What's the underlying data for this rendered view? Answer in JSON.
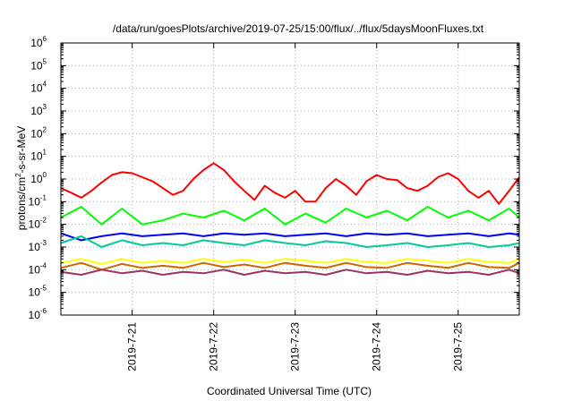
{
  "chart_data": {
    "type": "line",
    "title": "/data/run/goesPlots/archive/2019-07-25/15:00/flux/../flux/5daysMoonFluxes.txt",
    "xlabel": "Coordinated Universal Time (UTC)",
    "ylabel": "protons/cm²-s-sr-MeV",
    "ylabel_parts": {
      "pre": "protons/cm",
      "sup": "2",
      "post": "-s-sr-MeV"
    },
    "yscale": "log",
    "ylim_exp": [
      -6,
      6
    ],
    "ytick_exponents": [
      -6,
      -5,
      -4,
      -3,
      -2,
      -1,
      0,
      1,
      2,
      3,
      4,
      5,
      6
    ],
    "ytick_base": "10",
    "xlim": [
      "2019-07-20T03:00",
      "2019-07-25T18:00"
    ],
    "xticks": [
      {
        "date": "2019-07-21",
        "label": "2019-7-21"
      },
      {
        "date": "2019-07-22",
        "label": "2019-7-22"
      },
      {
        "date": "2019-07-23",
        "label": "2019-7-23"
      },
      {
        "date": "2019-07-24",
        "label": "2019-7-24"
      },
      {
        "date": "2019-07-25",
        "label": "2019-7-25"
      }
    ],
    "grid": true,
    "series": [
      {
        "color": "#ff0000",
        "x": [
          "2019-07-20T03:00",
          "2019-07-20T06:00",
          "2019-07-20T09:00",
          "2019-07-20T12:00",
          "2019-07-20T15:00",
          "2019-07-20T18:00",
          "2019-07-20T21:00",
          "2019-07-21T00:00",
          "2019-07-21T03:00",
          "2019-07-21T06:00",
          "2019-07-21T09:00",
          "2019-07-21T12:00",
          "2019-07-21T15:00",
          "2019-07-21T18:00",
          "2019-07-21T21:00",
          "2019-07-22T00:00",
          "2019-07-22T03:00",
          "2019-07-22T06:00",
          "2019-07-22T09:00",
          "2019-07-22T12:00",
          "2019-07-22T15:00",
          "2019-07-22T18:00",
          "2019-07-22T21:00",
          "2019-07-23T00:00",
          "2019-07-23T03:00",
          "2019-07-23T06:00",
          "2019-07-23T09:00",
          "2019-07-23T12:00",
          "2019-07-23T15:00",
          "2019-07-23T18:00",
          "2019-07-23T21:00",
          "2019-07-24T00:00",
          "2019-07-24T03:00",
          "2019-07-24T06:00",
          "2019-07-24T09:00",
          "2019-07-24T12:00",
          "2019-07-24T15:00",
          "2019-07-24T18:00",
          "2019-07-24T21:00",
          "2019-07-25T00:00",
          "2019-07-25T03:00",
          "2019-07-25T06:00",
          "2019-07-25T09:00",
          "2019-07-25T12:00",
          "2019-07-25T15:00",
          "2019-07-25T18:00"
        ],
        "y": [
          0.4,
          0.25,
          0.15,
          0.3,
          0.7,
          1.5,
          2.0,
          1.8,
          1.2,
          0.8,
          0.4,
          0.2,
          0.3,
          1.0,
          2.5,
          5.0,
          2.5,
          0.8,
          0.3,
          0.12,
          0.5,
          0.25,
          0.15,
          0.3,
          0.1,
          0.1,
          0.4,
          1.0,
          0.5,
          0.2,
          0.8,
          1.5,
          1.0,
          0.9,
          0.4,
          0.3,
          0.5,
          1.2,
          1.8,
          1.0,
          0.3,
          0.15,
          0.3,
          0.08,
          0.3,
          1.2
        ]
      },
      {
        "color": "#00ff00",
        "x": [
          "2019-07-20T03:00",
          "2019-07-20T09:00",
          "2019-07-20T15:00",
          "2019-07-20T21:00",
          "2019-07-21T03:00",
          "2019-07-21T09:00",
          "2019-07-21T15:00",
          "2019-07-21T21:00",
          "2019-07-22T03:00",
          "2019-07-22T09:00",
          "2019-07-22T15:00",
          "2019-07-22T21:00",
          "2019-07-23T03:00",
          "2019-07-23T09:00",
          "2019-07-23T15:00",
          "2019-07-23T21:00",
          "2019-07-24T03:00",
          "2019-07-24T09:00",
          "2019-07-24T15:00",
          "2019-07-24T21:00",
          "2019-07-25T03:00",
          "2019-07-25T09:00",
          "2019-07-25T15:00",
          "2019-07-25T18:00"
        ],
        "y": [
          0.02,
          0.06,
          0.01,
          0.05,
          0.01,
          0.015,
          0.03,
          0.02,
          0.04,
          0.015,
          0.05,
          0.01,
          0.03,
          0.012,
          0.05,
          0.02,
          0.04,
          0.015,
          0.06,
          0.02,
          0.04,
          0.015,
          0.05,
          0.02
        ]
      },
      {
        "color": "#0000ff",
        "x": [
          "2019-07-20T03:00",
          "2019-07-20T09:00",
          "2019-07-20T15:00",
          "2019-07-20T21:00",
          "2019-07-21T03:00",
          "2019-07-21T09:00",
          "2019-07-21T15:00",
          "2019-07-21T21:00",
          "2019-07-22T03:00",
          "2019-07-22T09:00",
          "2019-07-22T15:00",
          "2019-07-22T21:00",
          "2019-07-23T03:00",
          "2019-07-23T09:00",
          "2019-07-23T15:00",
          "2019-07-23T21:00",
          "2019-07-24T03:00",
          "2019-07-24T09:00",
          "2019-07-24T15:00",
          "2019-07-24T21:00",
          "2019-07-25T03:00",
          "2019-07-25T09:00",
          "2019-07-25T15:00",
          "2019-07-25T18:00"
        ],
        "y": [
          0.004,
          0.002,
          0.003,
          0.004,
          0.003,
          0.0035,
          0.004,
          0.003,
          0.004,
          0.0035,
          0.004,
          0.003,
          0.0035,
          0.004,
          0.003,
          0.004,
          0.0035,
          0.004,
          0.003,
          0.0035,
          0.004,
          0.003,
          0.004,
          0.0035
        ]
      },
      {
        "color": "#00cc99",
        "x": [
          "2019-07-20T03:00",
          "2019-07-20T09:00",
          "2019-07-20T15:00",
          "2019-07-20T21:00",
          "2019-07-21T03:00",
          "2019-07-21T09:00",
          "2019-07-21T15:00",
          "2019-07-21T21:00",
          "2019-07-22T03:00",
          "2019-07-22T09:00",
          "2019-07-22T15:00",
          "2019-07-22T21:00",
          "2019-07-23T03:00",
          "2019-07-23T09:00",
          "2019-07-23T15:00",
          "2019-07-23T21:00",
          "2019-07-24T03:00",
          "2019-07-24T09:00",
          "2019-07-24T15:00",
          "2019-07-24T21:00",
          "2019-07-25T03:00",
          "2019-07-25T09:00",
          "2019-07-25T15:00",
          "2019-07-25T18:00"
        ],
        "y": [
          0.0015,
          0.003,
          0.001,
          0.002,
          0.0012,
          0.0015,
          0.0012,
          0.002,
          0.0015,
          0.0012,
          0.002,
          0.0015,
          0.0012,
          0.0018,
          0.0015,
          0.001,
          0.0012,
          0.0015,
          0.001,
          0.0012,
          0.0015,
          0.001,
          0.0012,
          0.0015
        ]
      },
      {
        "color": "#ffff00",
        "x": [
          "2019-07-20T03:00",
          "2019-07-20T09:00",
          "2019-07-20T15:00",
          "2019-07-20T21:00",
          "2019-07-21T03:00",
          "2019-07-21T09:00",
          "2019-07-21T15:00",
          "2019-07-21T21:00",
          "2019-07-22T03:00",
          "2019-07-22T09:00",
          "2019-07-22T15:00",
          "2019-07-22T21:00",
          "2019-07-23T03:00",
          "2019-07-23T09:00",
          "2019-07-23T15:00",
          "2019-07-23T21:00",
          "2019-07-24T03:00",
          "2019-07-24T09:00",
          "2019-07-24T15:00",
          "2019-07-24T21:00",
          "2019-07-25T03:00",
          "2019-07-25T09:00",
          "2019-07-25T15:00",
          "2019-07-25T18:00"
        ],
        "y": [
          0.0002,
          0.0003,
          0.00018,
          0.0003,
          0.0002,
          0.00025,
          0.0002,
          0.0003,
          0.00022,
          0.00028,
          0.0002,
          0.0003,
          0.00025,
          0.0002,
          0.0003,
          0.00022,
          0.0002,
          0.0003,
          0.00025,
          0.0002,
          0.0003,
          0.00022,
          0.0002,
          0.0003
        ]
      },
      {
        "color": "#cc6600",
        "x": [
          "2019-07-20T03:00",
          "2019-07-20T09:00",
          "2019-07-20T15:00",
          "2019-07-20T21:00",
          "2019-07-21T03:00",
          "2019-07-21T09:00",
          "2019-07-21T15:00",
          "2019-07-21T21:00",
          "2019-07-22T03:00",
          "2019-07-22T09:00",
          "2019-07-22T15:00",
          "2019-07-22T21:00",
          "2019-07-23T03:00",
          "2019-07-23T09:00",
          "2019-07-23T15:00",
          "2019-07-23T21:00",
          "2019-07-24T03:00",
          "2019-07-24T09:00",
          "2019-07-24T15:00",
          "2019-07-24T21:00",
          "2019-07-25T03:00",
          "2019-07-25T09:00",
          "2019-07-25T15:00",
          "2019-07-25T18:00"
        ],
        "y": [
          0.00012,
          0.0002,
          0.0001,
          0.00018,
          0.00012,
          0.00015,
          0.00012,
          0.0002,
          0.00013,
          0.00017,
          0.00012,
          0.0002,
          0.00015,
          0.00012,
          0.0002,
          0.00013,
          0.00012,
          0.0002,
          0.00015,
          0.00012,
          0.0002,
          0.00013,
          0.00012,
          0.0002
        ]
      },
      {
        "color": "#993366",
        "x": [
          "2019-07-20T03:00",
          "2019-07-20T09:00",
          "2019-07-20T15:00",
          "2019-07-20T21:00",
          "2019-07-21T03:00",
          "2019-07-21T09:00",
          "2019-07-21T15:00",
          "2019-07-21T21:00",
          "2019-07-22T03:00",
          "2019-07-22T09:00",
          "2019-07-22T15:00",
          "2019-07-22T21:00",
          "2019-07-23T03:00",
          "2019-07-23T09:00",
          "2019-07-23T15:00",
          "2019-07-23T21:00",
          "2019-07-24T03:00",
          "2019-07-24T09:00",
          "2019-07-24T15:00",
          "2019-07-24T21:00",
          "2019-07-25T03:00",
          "2019-07-25T09:00",
          "2019-07-25T15:00",
          "2019-07-25T18:00"
        ],
        "y": [
          8e-05,
          6e-05,
          0.0001,
          7e-05,
          9e-05,
          6e-05,
          8e-05,
          7e-05,
          0.0001,
          6e-05,
          9e-05,
          7e-05,
          8e-05,
          6e-05,
          0.0001,
          7e-05,
          8e-05,
          6e-05,
          9e-05,
          7e-05,
          8e-05,
          6e-05,
          0.0001,
          7e-05
        ]
      }
    ]
  }
}
